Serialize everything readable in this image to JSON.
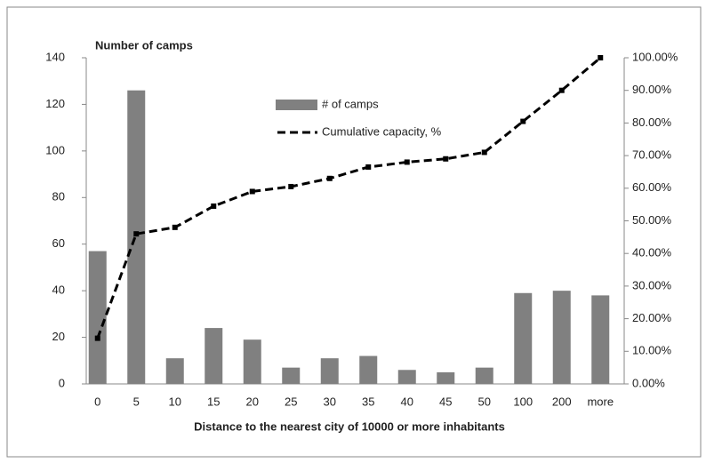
{
  "chart_data": {
    "type": "bar",
    "title": "Number of camps",
    "x_label": "Distance to the nearest city of 10000  or more inhabitants",
    "categories": [
      "0",
      "5",
      "10",
      "15",
      "20",
      "25",
      "30",
      "35",
      "40",
      "45",
      "50",
      "100",
      "200",
      "more"
    ],
    "series": [
      {
        "name": "# of camps",
        "type": "bar",
        "color": "#808080",
        "values": [
          57,
          126,
          11,
          24,
          19,
          7,
          11,
          12,
          6,
          5,
          7,
          39,
          40,
          38
        ]
      },
      {
        "name": "Cumulative capacity, %",
        "type": "line",
        "axis": "y2",
        "color": "#000000",
        "values": [
          14,
          46,
          48,
          54.5,
          59,
          60.5,
          63,
          66.5,
          68,
          69,
          71,
          80.5,
          90,
          100
        ]
      }
    ],
    "ylim": [
      0,
      140
    ],
    "yticks": [
      0,
      20,
      40,
      60,
      80,
      100,
      120,
      140
    ],
    "y2lim": [
      0,
      100
    ],
    "y2ticks": [
      {
        "value": 0,
        "label": "0.00%"
      },
      {
        "value": 10,
        "label": "10.00%"
      },
      {
        "value": 20,
        "label": "20.00%"
      },
      {
        "value": 30,
        "label": "30.00%"
      },
      {
        "value": 40,
        "label": "40.00%"
      },
      {
        "value": 50,
        "label": "50.00%"
      },
      {
        "value": 60,
        "label": "60.00%"
      },
      {
        "value": 70,
        "label": "70.00%"
      },
      {
        "value": 80,
        "label": "80.00%"
      },
      {
        "value": 90,
        "label": "90.00%"
      },
      {
        "value": 100,
        "label": "100.00%"
      }
    ],
    "grid": false
  }
}
